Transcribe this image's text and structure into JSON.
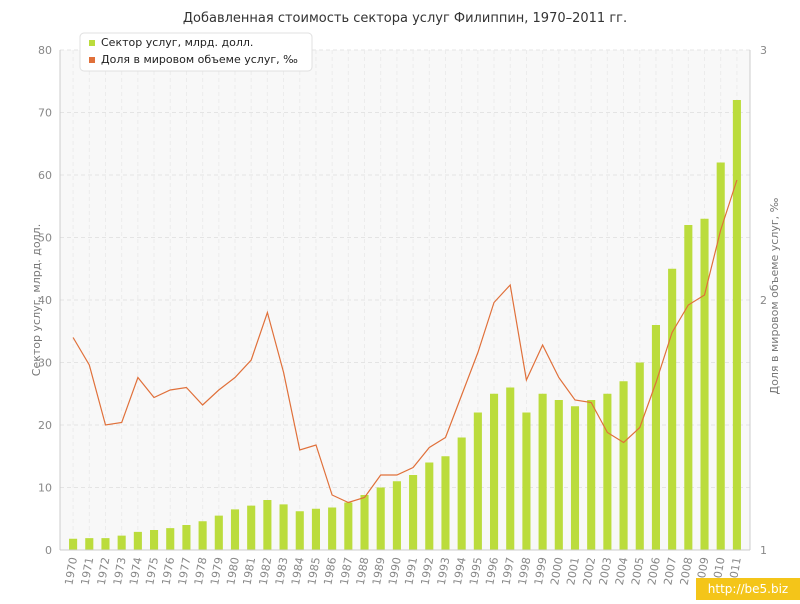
{
  "chart_data": {
    "type": "bar",
    "title": "Добавленная стоимость сектора услуг Филиппин, 1970–2011 гг.",
    "ylabel": "Сектор услуг, млрд. долл.",
    "y2label": "Доля в мировом объеме услуг, ‰",
    "ylim": [
      0,
      80
    ],
    "y2lim": [
      1,
      3
    ],
    "y_ticks": [
      "0",
      "10",
      "20",
      "30",
      "40",
      "50",
      "60",
      "70",
      "80"
    ],
    "y2_ticks": [
      "1",
      "2",
      "3"
    ],
    "grid": true,
    "legend_position": "top-left",
    "categories": [
      "1970",
      "1971",
      "1972",
      "1973",
      "1974",
      "1975",
      "1976",
      "1977",
      "1978",
      "1979",
      "1980",
      "1981",
      "1982",
      "1983",
      "1984",
      "1985",
      "1986",
      "1987",
      "1988",
      "1989",
      "1990",
      "1991",
      "1992",
      "1993",
      "1994",
      "1995",
      "1996",
      "1997",
      "1998",
      "1999",
      "2000",
      "2001",
      "2002",
      "2003",
      "2004",
      "2005",
      "2006",
      "2007",
      "2008",
      "2009",
      "2010",
      "2011"
    ],
    "series": [
      {
        "name": "Сектор услуг, млрд. долл.",
        "type": "bar",
        "axis": "left",
        "color": "#bbdc3c",
        "values": [
          1.8,
          1.9,
          1.9,
          2.3,
          2.9,
          3.2,
          3.5,
          4.0,
          4.6,
          5.5,
          6.5,
          7.1,
          8.0,
          7.3,
          6.2,
          6.6,
          6.8,
          7.6,
          8.8,
          10.0,
          11.0,
          12.0,
          14.0,
          15.0,
          18.0,
          22.0,
          25.0,
          26.0,
          22.0,
          25.0,
          24.0,
          23.0,
          24.0,
          25.0,
          27.0,
          30.0,
          36.0,
          45.0,
          52.0,
          53.0,
          62.0,
          72.0
        ]
      },
      {
        "name": "Доля в мировом объеме услуг, ‰",
        "type": "line",
        "axis": "right",
        "color": "#e0703a",
        "values": [
          1.85,
          1.74,
          1.5,
          1.51,
          1.69,
          1.61,
          1.64,
          1.65,
          1.58,
          1.64,
          1.69,
          1.76,
          1.95,
          1.71,
          1.4,
          1.42,
          1.22,
          1.19,
          1.21,
          1.3,
          1.3,
          1.33,
          1.41,
          1.45,
          1.62,
          1.79,
          1.99,
          2.06,
          1.68,
          1.82,
          1.69,
          1.6,
          1.59,
          1.47,
          1.43,
          1.49,
          1.67,
          1.87,
          1.98,
          2.02,
          2.28,
          2.48
        ]
      }
    ]
  },
  "watermark": "http://be5.biz"
}
